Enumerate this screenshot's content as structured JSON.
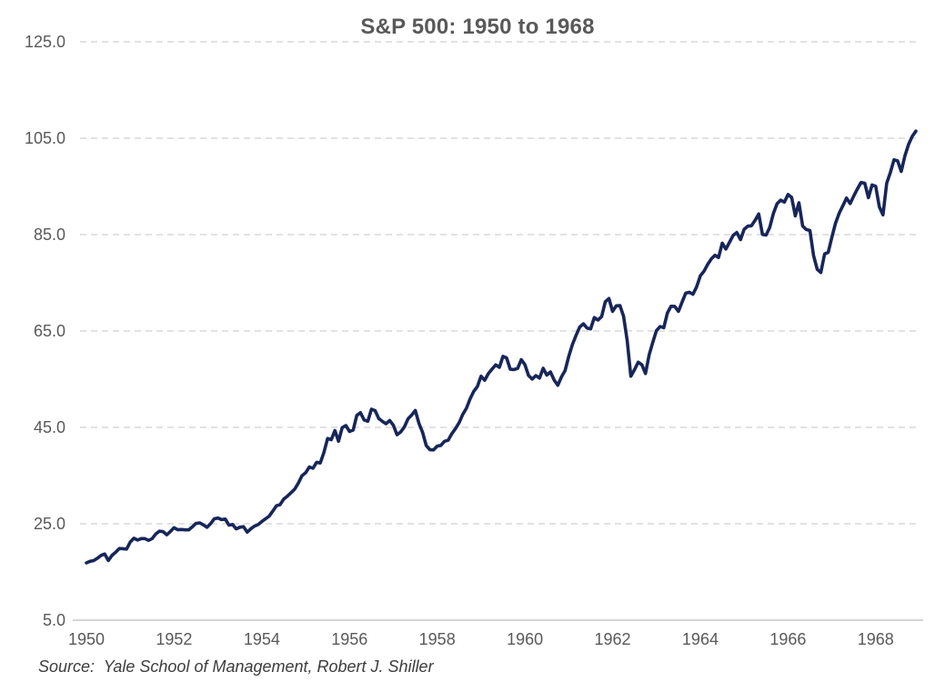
{
  "chart_data": {
    "type": "line",
    "title": "S&P 500: 1950 to 1968",
    "source": "Source:  Yale School of Management, Robert J. Shiller",
    "xlabel": "",
    "ylabel": "",
    "legend": "none",
    "grid": "horizontal-dashed",
    "ylim": [
      5.0,
      125.0
    ],
    "y_ticks": [
      125.0,
      105.0,
      85.0,
      65.0,
      45.0,
      25.0,
      5.0
    ],
    "x_tick_years": [
      1950,
      1952,
      1954,
      1956,
      1958,
      1960,
      1962,
      1964,
      1966,
      1968
    ],
    "x_start_year": 1950,
    "x_end_year": 1968,
    "frequency": "monthly",
    "series": [
      {
        "name": "S&P 500",
        "values": [
          16.88,
          17.21,
          17.35,
          17.84,
          18.44,
          18.74,
          17.38,
          18.43,
          19.08,
          19.87,
          19.83,
          19.75,
          21.21,
          22.0,
          21.63,
          21.92,
          21.93,
          21.55,
          21.93,
          22.89,
          23.48,
          23.36,
          22.71,
          23.41,
          24.19,
          23.75,
          23.81,
          23.74,
          23.73,
          24.38,
          25.08,
          25.18,
          24.78,
          24.26,
          25.03,
          26.04,
          26.18,
          25.86,
          25.99,
          24.71,
          24.84,
          23.95,
          24.29,
          24.39,
          23.27,
          23.97,
          24.5,
          24.83,
          25.46,
          26.02,
          26.57,
          27.63,
          28.73,
          28.96,
          30.13,
          30.73,
          31.45,
          32.18,
          33.44,
          34.97,
          35.6,
          36.79,
          36.5,
          37.76,
          37.6,
          39.78,
          42.69,
          42.43,
          44.34,
          42.11,
          44.95,
          45.37,
          44.15,
          44.43,
          47.49,
          48.05,
          46.54,
          46.27,
          48.78,
          48.49,
          46.84,
          46.24,
          45.76,
          46.44,
          45.43,
          43.47,
          44.03,
          45.05,
          46.78,
          47.55,
          48.51,
          45.84,
          43.98,
          41.24,
          40.35,
          40.33,
          41.12,
          41.26,
          42.11,
          42.34,
          43.7,
          44.75,
          45.98,
          47.7,
          48.96,
          50.95,
          52.5,
          53.49,
          55.62,
          54.77,
          56.15,
          57.1,
          57.96,
          57.46,
          59.74,
          59.4,
          57.05,
          57.0,
          57.23,
          59.06,
          58.03,
          55.78,
          55.02,
          55.73,
          55.22,
          57.26,
          55.84,
          56.51,
          54.81,
          53.73,
          55.47,
          56.8,
          59.72,
          62.17,
          64.12,
          65.83,
          66.5,
          65.62,
          65.44,
          67.79,
          67.26,
          68.0,
          71.08,
          71.74,
          69.07,
          70.22,
          70.29,
          68.05,
          62.99,
          55.63,
          56.97,
          58.52,
          58.0,
          56.17,
          60.04,
          62.64,
          65.06,
          65.92,
          65.67,
          68.76,
          70.14,
          70.11,
          69.07,
          70.98,
          72.85,
          73.03,
          72.62,
          74.17,
          76.45,
          77.39,
          78.8,
          79.94,
          80.72,
          80.24,
          83.22,
          82.0,
          83.41,
          84.85,
          85.44,
          83.96,
          86.12,
          86.75,
          86.83,
          87.97,
          89.28,
          85.04,
          84.91,
          86.49,
          89.38,
          91.39,
          92.15,
          91.73,
          93.32,
          92.69,
          88.88,
          91.6,
          86.78,
          86.06,
          85.84,
          80.65,
          77.81,
          77.13,
          80.99,
          81.33,
          84.45,
          87.36,
          89.42,
          90.96,
          92.59,
          91.43,
          93.01,
          94.49,
          95.81,
          95.66,
          92.66,
          95.3,
          95.04,
          90.75,
          89.09,
          95.67,
          97.87,
          100.53,
          100.3,
          98.11,
          101.34,
          103.76,
          105.4,
          106.48
        ]
      }
    ],
    "colors": {
      "line": "#17265A",
      "grid": "#D9D9D9",
      "axis_line": "#C9C9C9",
      "tick_text": "#595959",
      "title_text": "#595959",
      "source_text": "#3D3D3D",
      "background": "#FFFFFF"
    }
  }
}
